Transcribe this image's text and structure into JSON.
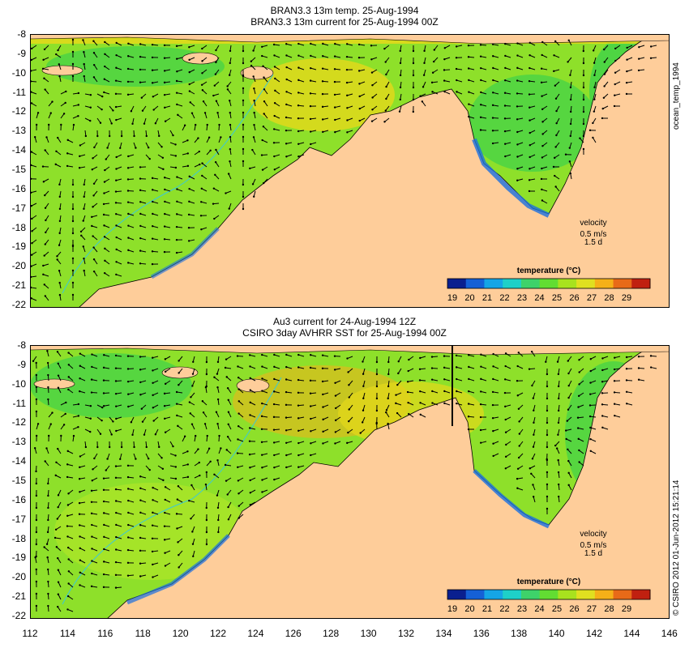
{
  "top": {
    "title_line1": "BRAN3.3 13m temp. 25-Aug-1994",
    "title_line2": "BRAN3.3 13m current for 25-Aug-1994 00Z",
    "side_label": "ocean_temp_1994",
    "velocity_label": "velocity",
    "velocity_scale": "0.5 m/s",
    "velocity_time": "1.5 d"
  },
  "bottom": {
    "title_line1": "Au3 current for 24-Aug-1994 12Z",
    "title_line2": "CSIRO 3day AVHRR SST for 25-Aug-1994 00Z",
    "side_label": "© CSIRO 2012  01-Jun-2012 15:21:14",
    "velocity_label": "velocity",
    "velocity_scale": "0.5 m/s",
    "velocity_time": "1.5 d"
  },
  "colorbar": {
    "title": "temperature (°C)",
    "ticks": [
      "19",
      "20",
      "21",
      "22",
      "23",
      "24",
      "25",
      "26",
      "27",
      "28",
      "29"
    ],
    "colors": [
      "#0a1f8f",
      "#1560d6",
      "#15a5e6",
      "#1ed0c8",
      "#3ed26a",
      "#62dd32",
      "#a8e21e",
      "#e0e020",
      "#f5b018",
      "#e86a18",
      "#c02010"
    ]
  },
  "y_ticks": [
    "-8",
    "-9",
    "-10",
    "-11",
    "-12",
    "-13",
    "-14",
    "-15",
    "-16",
    "-17",
    "-18",
    "-19",
    "-20",
    "-21",
    "-22"
  ],
  "x_ticks": [
    "112",
    "114",
    "116",
    "118",
    "120",
    "122",
    "124",
    "126",
    "128",
    "130",
    "132",
    "134",
    "136",
    "138",
    "140",
    "142",
    "144",
    "146"
  ],
  "colors": {
    "land": "#fecd9a",
    "ocean_main": "#8ee02a",
    "ocean_warm": "#e6d81a",
    "ocean_cool": "#3fd24a",
    "coast_cold": "#1a6fe0"
  }
}
